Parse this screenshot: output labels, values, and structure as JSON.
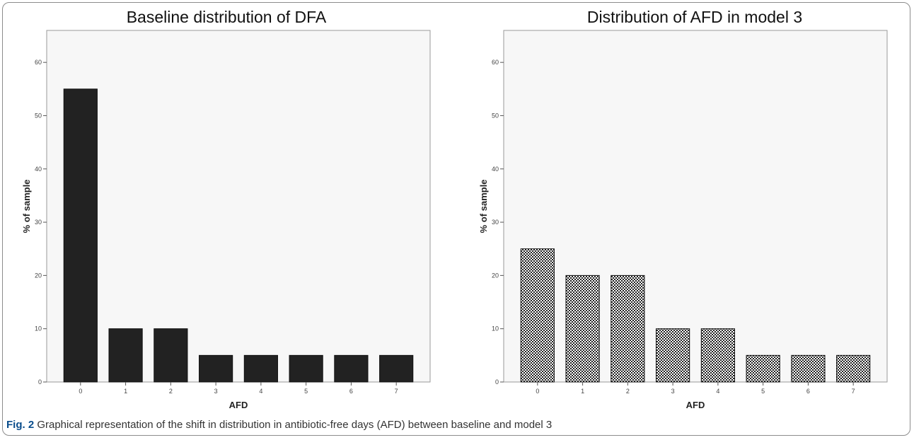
{
  "chart_data": [
    {
      "type": "bar",
      "title": "Baseline distribution of DFA",
      "xlabel": "AFD",
      "ylabel": "% of sample",
      "categories": [
        "0",
        "1",
        "2",
        "3",
        "4",
        "5",
        "6",
        "7"
      ],
      "values": [
        55,
        10,
        10,
        5,
        5,
        5,
        5,
        5
      ],
      "ylim": [
        0,
        66
      ],
      "yticks": [
        "0",
        "10",
        "20",
        "30",
        "40",
        "50",
        "60"
      ],
      "bar_fill": "solid",
      "bar_color": "#222222",
      "plot_background": "#f7f7f7",
      "grid": false
    },
    {
      "type": "bar",
      "title": "Distribution of AFD in model 3",
      "xlabel": "AFD",
      "ylabel": "% of sample",
      "categories": [
        "0",
        "1",
        "2",
        "3",
        "4",
        "5",
        "6",
        "7"
      ],
      "values": [
        25,
        20,
        20,
        10,
        10,
        5,
        5,
        5
      ],
      "ylim": [
        0,
        66
      ],
      "yticks": [
        "0",
        "10",
        "20",
        "30",
        "40",
        "50",
        "60"
      ],
      "bar_fill": "checkered",
      "bar_color": "#222222",
      "plot_background": "#f7f7f7",
      "grid": false
    }
  ],
  "caption": {
    "label": "Fig. 2",
    "text": " Graphical representation of the shift in distribution in antibiotic-free days (AFD) between baseline and model 3"
  }
}
